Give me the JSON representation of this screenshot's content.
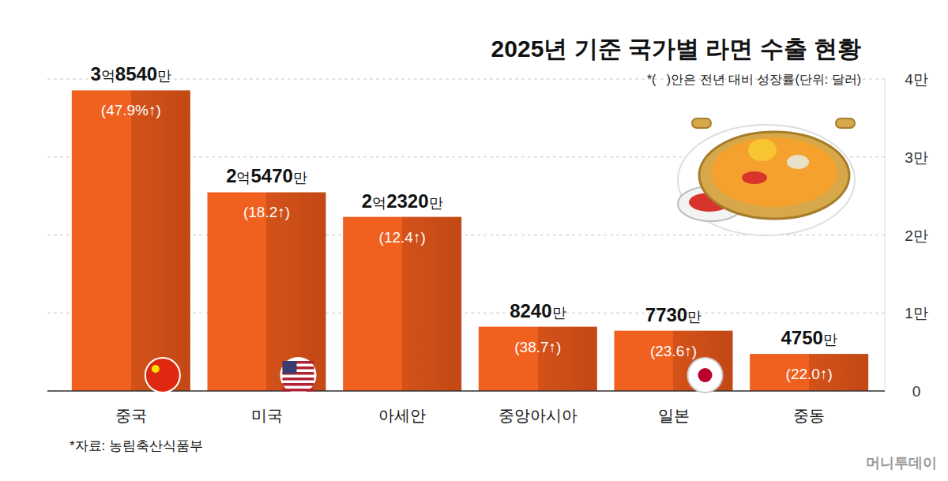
{
  "chart_data": {
    "type": "bar",
    "title": "2025년 기준 국가별 라면 수출 현황",
    "subtitle": "*(   )안은 전년 대비 성장률(단위: 달러)",
    "categories": [
      "중국",
      "미국",
      "아세안",
      "중앙아시아",
      "일본",
      "중동"
    ],
    "values": [
      38540,
      25470,
      22320,
      8240,
      7730,
      4750
    ],
    "value_labels": [
      "3억8540만",
      "2억5470만",
      "2억2320만",
      "8240만",
      "7730만",
      "4750만"
    ],
    "growth_labels": [
      "(47.9%↑)",
      "(18.2↑)",
      "(12.4↑)",
      "(38.7↑)",
      "(23.6↑)",
      "(22.0↑)"
    ],
    "color": "#f0601f",
    "ylim": [
      0,
      40000
    ],
    "yticks": [
      0,
      {
        "value": 10000,
        "label": "1만"
      },
      {
        "value": 20000,
        "label": "2만"
      },
      {
        "value": 30000,
        "label": "3만"
      },
      {
        "value": 40000,
        "label": "4만"
      }
    ],
    "grid": true,
    "data_labels": true,
    "source": "*자료: 농림축산식품부",
    "watermark": "머니투데이"
  }
}
